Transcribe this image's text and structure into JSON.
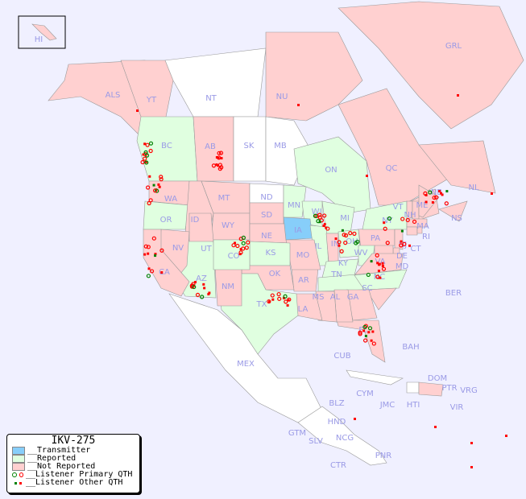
{
  "legend": {
    "title": "IKV-275",
    "items": [
      {
        "label": "__Transmitter",
        "color": "#87cefa"
      },
      {
        "label": "__Reported",
        "color": "#e0ffe0"
      },
      {
        "label": "__Not Reported",
        "color": "#ffd0d0"
      },
      {
        "label": "__Listener Primary QTH",
        "colors": [
          "#008000",
          "#ff0000"
        ]
      },
      {
        "label": "__Listener Other QTH",
        "colors": [
          "#008000",
          "#ff0000"
        ]
      }
    ]
  },
  "colors": {
    "ocean": "#f0f0ff",
    "transmitter": "#87cefa",
    "reported": "#e0ffe0",
    "not_reported": "#ffd0d0",
    "no_data": "#ffffff",
    "label": "#9a9ae6"
  },
  "regions": {
    "HI": "HI",
    "ALS": "ALS",
    "YT": "YT",
    "NT": "NT",
    "NU": "NU",
    "GRL": "GRL",
    "BC": "BC",
    "AB": "AB",
    "SK": "SK",
    "MB": "MB",
    "ON": "ON",
    "QC": "QC",
    "NL": "NL",
    "NB": "NB",
    "NS": "NS",
    "WA": "WA",
    "OR": "OR",
    "ID": "ID",
    "MT": "MT",
    "WY": "WY",
    "ND": "ND",
    "SD": "SD",
    "NE": "NE",
    "MN": "MN",
    "WI": "WI",
    "IA": "IA",
    "MI": "MI",
    "IL": "IL",
    "IN": "IN",
    "OH": "OH",
    "PA": "PA",
    "NY": "NY",
    "VT": "VT",
    "NH": "NH",
    "ME": "ME",
    "MA": "MA",
    "CT": "CT",
    "RI": "RI",
    "NJ": "NJ",
    "DE": "DE",
    "MD": "MD",
    "WV": "WV",
    "VA": "VA",
    "KY": "KY",
    "TN": "TN",
    "NC": "NC",
    "SC": "SC",
    "GA": "GA",
    "FL": "FL",
    "AL": "AL",
    "MS": "MS",
    "LA": "LA",
    "AR": "AR",
    "MO": "MO",
    "KS": "KS",
    "OK": "OK",
    "TX": "TX",
    "NM": "NM",
    "AZ": "AZ",
    "UT": "UT",
    "CO": "CO",
    "NV": "NV",
    "CA": "CA",
    "MEX": "MEX",
    "BER": "BER",
    "BAH": "BAH",
    "CUB": "CUB",
    "DOM": "DOM",
    "PTR": "PTR",
    "VRG": "VRG",
    "VIR": "VIR",
    "HTI": "HTI",
    "JMC": "JMC",
    "CYM": "CYM",
    "BLZ": "BLZ",
    "HND": "HND",
    "GTM": "GTM",
    "SLV": "SLV",
    "NCG": "NCG",
    "CTR": "CTR",
    "PNR": "PNR"
  },
  "status": {
    "transmitter": [
      "IA"
    ],
    "reported": [
      "BC",
      "ON",
      "OR",
      "CO",
      "KS",
      "AZ",
      "TX",
      "MN",
      "WI",
      "MI",
      "IL",
      "OH",
      "NY",
      "WV",
      "TN",
      "NC",
      "KY"
    ],
    "not_reported": [
      "ALS",
      "YT",
      "NU",
      "GRL",
      "AB",
      "QC",
      "NL",
      "NB",
      "NS",
      "WA",
      "ID",
      "MT",
      "WY",
      "SD",
      "NE",
      "UT",
      "NV",
      "CA",
      "NM",
      "OK",
      "MO",
      "AR",
      "LA",
      "MS",
      "AL",
      "GA",
      "FL",
      "SC",
      "VA",
      "MD",
      "DE",
      "NJ",
      "PA",
      "CT",
      "RI",
      "MA",
      "VT",
      "NH",
      "ME",
      "IN",
      "HI",
      "DOM"
    ],
    "no_data": [
      "NT",
      "SK",
      "MB",
      "ND",
      "MEX"
    ]
  }
}
